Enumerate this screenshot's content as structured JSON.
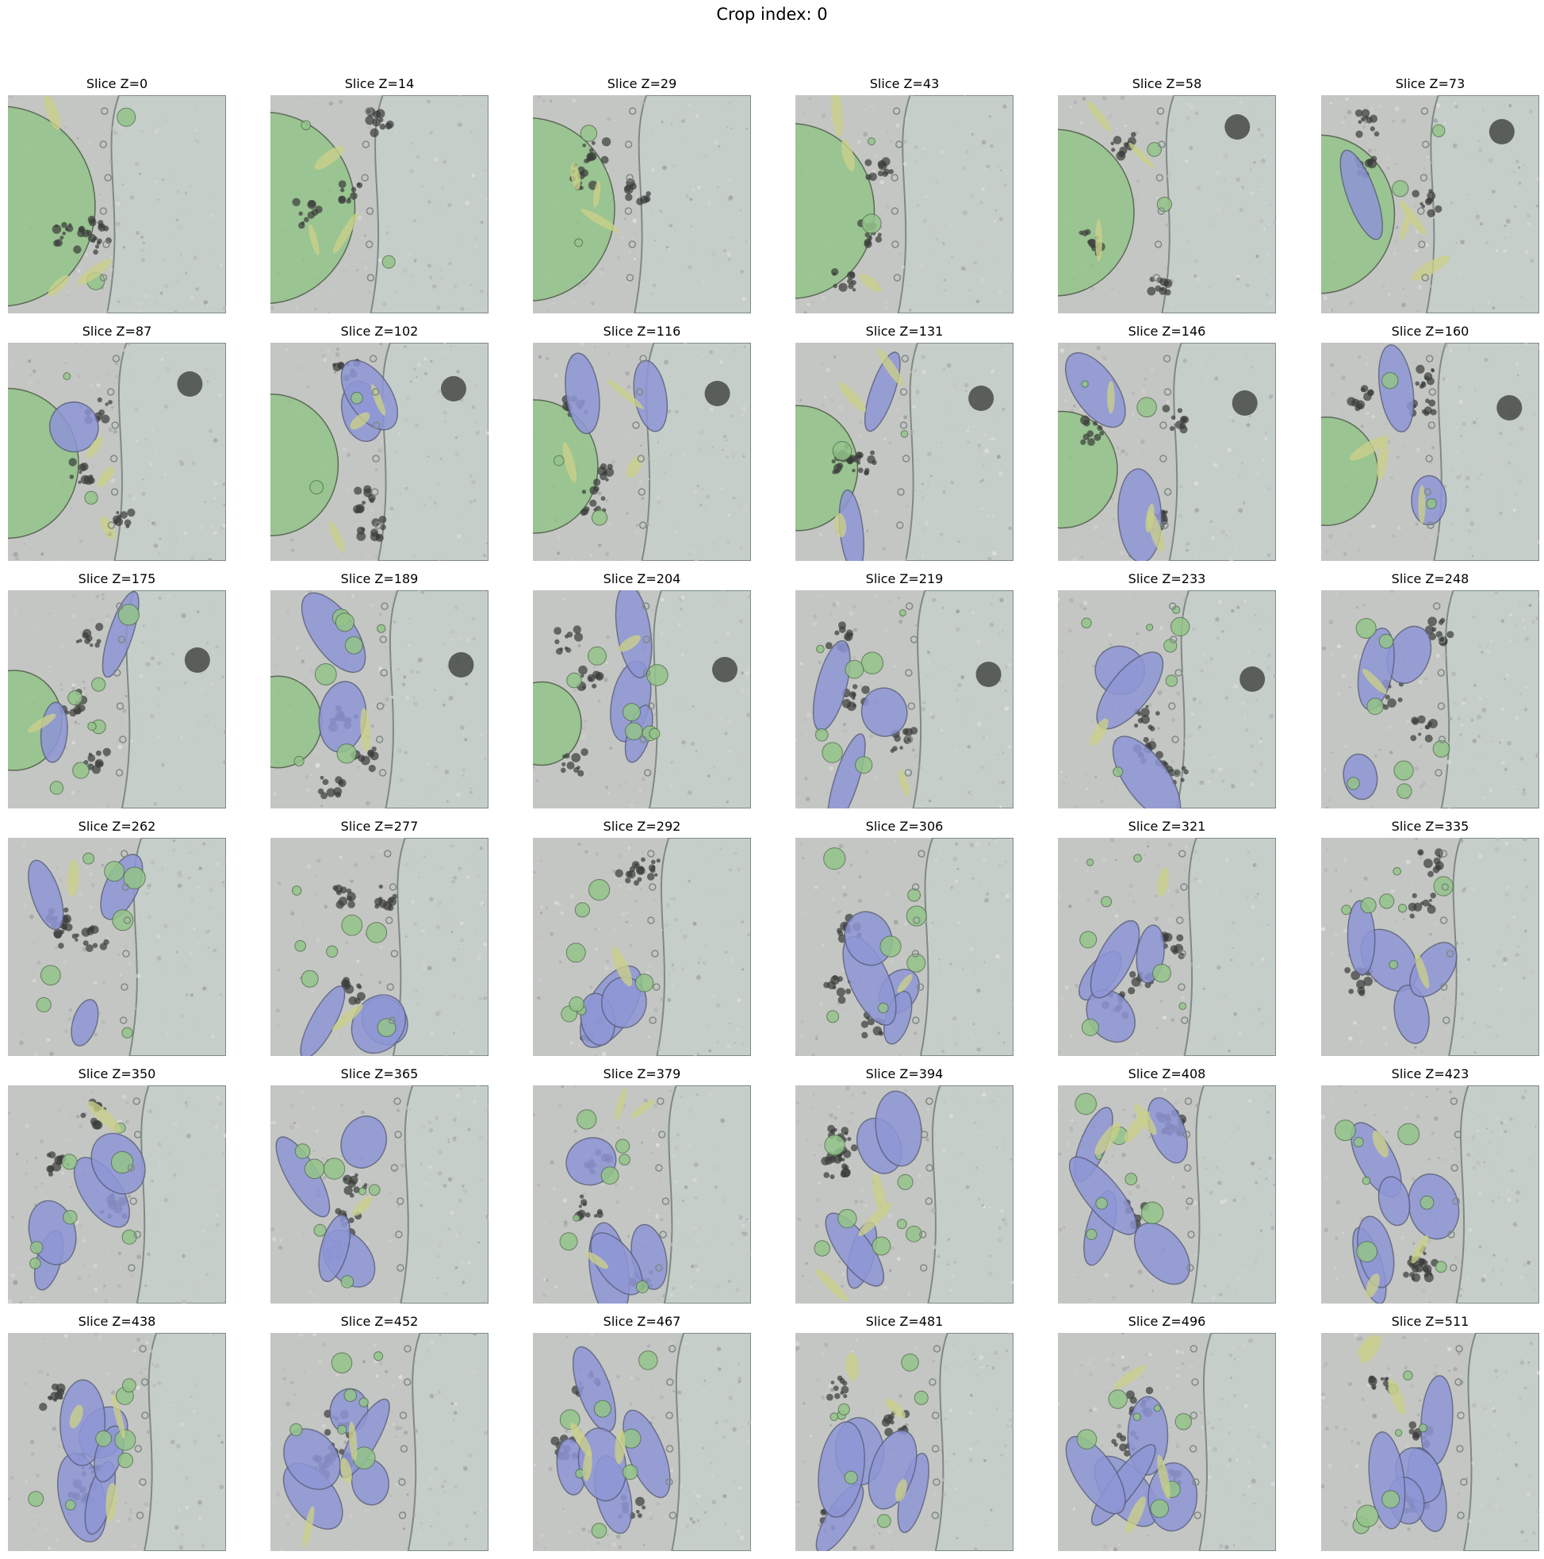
{
  "figure": {
    "title": "Crop index: 0"
  },
  "legend_colors": {
    "blue_overlay": "#8e96d6",
    "green_overlay": "#93c48a",
    "yellow_overlay": "#c9d08a",
    "membrane_gray": "#7f8a84",
    "background_gray": "#c9cdc9",
    "extracellular": "#c5cec9"
  },
  "panels": [
    {
      "title": "Slice Z=0",
      "z": 0
    },
    {
      "title": "Slice Z=14",
      "z": 14
    },
    {
      "title": "Slice Z=29",
      "z": 29
    },
    {
      "title": "Slice Z=43",
      "z": 43
    },
    {
      "title": "Slice Z=58",
      "z": 58
    },
    {
      "title": "Slice Z=73",
      "z": 73
    },
    {
      "title": "Slice Z=87",
      "z": 87
    },
    {
      "title": "Slice Z=102",
      "z": 102
    },
    {
      "title": "Slice Z=116",
      "z": 116
    },
    {
      "title": "Slice Z=131",
      "z": 131
    },
    {
      "title": "Slice Z=146",
      "z": 146
    },
    {
      "title": "Slice Z=160",
      "z": 160
    },
    {
      "title": "Slice Z=175",
      "z": 175
    },
    {
      "title": "Slice Z=189",
      "z": 189
    },
    {
      "title": "Slice Z=204",
      "z": 204
    },
    {
      "title": "Slice Z=219",
      "z": 219
    },
    {
      "title": "Slice Z=233",
      "z": 233
    },
    {
      "title": "Slice Z=248",
      "z": 248
    },
    {
      "title": "Slice Z=262",
      "z": 262
    },
    {
      "title": "Slice Z=277",
      "z": 277
    },
    {
      "title": "Slice Z=292",
      "z": 292
    },
    {
      "title": "Slice Z=306",
      "z": 306
    },
    {
      "title": "Slice Z=321",
      "z": 321
    },
    {
      "title": "Slice Z=335",
      "z": 335
    },
    {
      "title": "Slice Z=350",
      "z": 350
    },
    {
      "title": "Slice Z=365",
      "z": 365
    },
    {
      "title": "Slice Z=379",
      "z": 379
    },
    {
      "title": "Slice Z=394",
      "z": 394
    },
    {
      "title": "Slice Z=408",
      "z": 408
    },
    {
      "title": "Slice Z=423",
      "z": 423
    },
    {
      "title": "Slice Z=438",
      "z": 438
    },
    {
      "title": "Slice Z=452",
      "z": 452
    },
    {
      "title": "Slice Z=467",
      "z": 467
    },
    {
      "title": "Slice Z=481",
      "z": 481
    },
    {
      "title": "Slice Z=496",
      "z": 496
    },
    {
      "title": "Slice Z=511",
      "z": 511
    }
  ]
}
